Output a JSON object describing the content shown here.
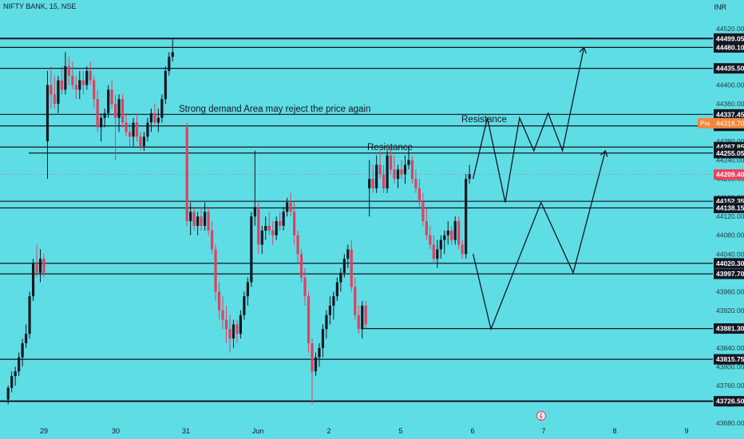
{
  "header": {
    "symbol": "NIFTY BANK, 15, NSE",
    "currency": "INR"
  },
  "colors": {
    "background": "#5fdde5",
    "bull": "#131722",
    "bear": "#e0405e",
    "line": "#131722",
    "label_bg": "#131722",
    "label_text": "#ffffff",
    "pre_bg": "#f0883a",
    "current_bg": "#f0405e"
  },
  "chart_data": {
    "type": "candlestick",
    "title": "",
    "ylim": [
      43680,
      44525
    ],
    "y_ticks": [
      "44520.00",
      "44480.00",
      "44440.00",
      "44400.00",
      "44360.00",
      "44320.00",
      "44280.00",
      "44240.00",
      "44200.00",
      "44160.00",
      "44120.00",
      "44080.00",
      "44040.00",
      "44000.00",
      "43960.00",
      "43920.00",
      "43880.00",
      "43840.00",
      "43800.00",
      "43760.00",
      "43720.00",
      "43680.00"
    ],
    "x_labels": [
      "29",
      "30",
      "31",
      "Jun",
      "2",
      "5",
      "6",
      "7",
      "8",
      "9"
    ],
    "horizontal_levels": [
      {
        "label": "44499.05",
        "value": 44499.05
      },
      {
        "label": "44480.10",
        "value": 44480.1
      },
      {
        "label": "44435.50",
        "value": 44435.5
      },
      {
        "label": "44337.45",
        "value": 44337.45
      },
      {
        "label": "44312.95",
        "value": 44312.95
      },
      {
        "label": "44267.85",
        "value": 44267.85
      },
      {
        "label": "44255.05",
        "value": 44255.05
      },
      {
        "label": "44152.35",
        "value": 44152.35
      },
      {
        "label": "44138.15",
        "value": 44138.15
      },
      {
        "label": "44020.30",
        "value": 44020.3
      },
      {
        "label": "43997.70",
        "value": 43997.7
      },
      {
        "label": "43881.30",
        "value": 43881.3
      },
      {
        "label": "43815.75",
        "value": 43815.75
      },
      {
        "label": "43726.50",
        "value": 43726.5
      }
    ],
    "pre_market": {
      "tag": "Pre",
      "label": "44318.70",
      "value": 44318.7
    },
    "current_price": {
      "label": "44209.40",
      "value": 44209.4
    },
    "annotations": [
      {
        "text": "Strong demand Area may reject the price again",
        "x": 31.0,
        "y": 44337
      },
      {
        "text": "Resistance",
        "x": 5.85,
        "y": 44317
      },
      {
        "text": "Resistance",
        "x": 4.6,
        "y": 44262
      }
    ],
    "candles": [
      {
        "x": 28.5,
        "o": 43730,
        "h": 43760,
        "l": 43720,
        "c": 43755
      },
      {
        "x": 28.55,
        "o": 43755,
        "h": 43790,
        "l": 43745,
        "c": 43780
      },
      {
        "x": 28.6,
        "o": 43780,
        "h": 43800,
        "l": 43760,
        "c": 43790
      },
      {
        "x": 28.65,
        "o": 43790,
        "h": 43830,
        "l": 43780,
        "c": 43820
      },
      {
        "x": 28.7,
        "o": 43820,
        "h": 43860,
        "l": 43800,
        "c": 43850
      },
      {
        "x": 28.75,
        "o": 43850,
        "h": 43890,
        "l": 43840,
        "c": 43870
      },
      {
        "x": 28.8,
        "o": 43870,
        "h": 43960,
        "l": 43860,
        "c": 43950
      },
      {
        "x": 28.85,
        "o": 43950,
        "h": 44030,
        "l": 43940,
        "c": 44020
      },
      {
        "x": 28.9,
        "o": 44020,
        "h": 44060,
        "l": 43990,
        "c": 44000
      },
      {
        "x": 28.95,
        "o": 44000,
        "h": 44050,
        "l": 43980,
        "c": 44030
      },
      {
        "x": 29.0,
        "o": 44030,
        "h": 44040,
        "l": 43990,
        "c": 44000
      },
      {
        "x": 29.05,
        "o": 44280,
        "h": 44430,
        "l": 44200,
        "c": 44400
      },
      {
        "x": 29.1,
        "o": 44400,
        "h": 44440,
        "l": 44350,
        "c": 44380
      },
      {
        "x": 29.15,
        "o": 44380,
        "h": 44420,
        "l": 44350,
        "c": 44360
      },
      {
        "x": 29.2,
        "o": 44360,
        "h": 44420,
        "l": 44340,
        "c": 44410
      },
      {
        "x": 29.25,
        "o": 44410,
        "h": 44440,
        "l": 44380,
        "c": 44390
      },
      {
        "x": 29.3,
        "o": 44390,
        "h": 44470,
        "l": 44380,
        "c": 44440
      },
      {
        "x": 29.35,
        "o": 44440,
        "h": 44460,
        "l": 44400,
        "c": 44420
      },
      {
        "x": 29.4,
        "o": 44420,
        "h": 44450,
        "l": 44390,
        "c": 44400
      },
      {
        "x": 29.45,
        "o": 44400,
        "h": 44420,
        "l": 44370,
        "c": 44390
      },
      {
        "x": 29.5,
        "o": 44390,
        "h": 44430,
        "l": 44370,
        "c": 44410
      },
      {
        "x": 29.55,
        "o": 44410,
        "h": 44430,
        "l": 44380,
        "c": 44400
      },
      {
        "x": 29.6,
        "o": 44400,
        "h": 44440,
        "l": 44390,
        "c": 44430
      },
      {
        "x": 29.65,
        "o": 44430,
        "h": 44450,
        "l": 44400,
        "c": 44410
      },
      {
        "x": 29.7,
        "o": 44410,
        "h": 44420,
        "l": 44350,
        "c": 44370
      },
      {
        "x": 29.75,
        "o": 44370,
        "h": 44390,
        "l": 44300,
        "c": 44310
      },
      {
        "x": 29.8,
        "o": 44310,
        "h": 44340,
        "l": 44280,
        "c": 44330
      },
      {
        "x": 29.85,
        "o": 44330,
        "h": 44350,
        "l": 44310,
        "c": 44340
      },
      {
        "x": 29.9,
        "o": 44340,
        "h": 44400,
        "l": 44330,
        "c": 44390
      },
      {
        "x": 29.95,
        "o": 44390,
        "h": 44410,
        "l": 44350,
        "c": 44360
      },
      {
        "x": 30.0,
        "o": 44360,
        "h": 44380,
        "l": 44240,
        "c": 44330
      },
      {
        "x": 30.05,
        "o": 44330,
        "h": 44380,
        "l": 44300,
        "c": 44370
      },
      {
        "x": 30.1,
        "o": 44370,
        "h": 44380,
        "l": 44310,
        "c": 44320
      },
      {
        "x": 30.15,
        "o": 44320,
        "h": 44340,
        "l": 44290,
        "c": 44300
      },
      {
        "x": 30.2,
        "o": 44300,
        "h": 44320,
        "l": 44270,
        "c": 44290
      },
      {
        "x": 30.25,
        "o": 44290,
        "h": 44330,
        "l": 44270,
        "c": 44320
      },
      {
        "x": 30.3,
        "o": 44320,
        "h": 44340,
        "l": 44280,
        "c": 44290
      },
      {
        "x": 30.35,
        "o": 44290,
        "h": 44300,
        "l": 44260,
        "c": 44270
      },
      {
        "x": 30.4,
        "o": 44270,
        "h": 44300,
        "l": 44260,
        "c": 44290
      },
      {
        "x": 30.45,
        "o": 44290,
        "h": 44330,
        "l": 44280,
        "c": 44320
      },
      {
        "x": 30.5,
        "o": 44320,
        "h": 44350,
        "l": 44300,
        "c": 44340
      },
      {
        "x": 30.55,
        "o": 44340,
        "h": 44360,
        "l": 44310,
        "c": 44320
      },
      {
        "x": 30.6,
        "o": 44320,
        "h": 44350,
        "l": 44300,
        "c": 44330
      },
      {
        "x": 30.65,
        "o": 44330,
        "h": 44380,
        "l": 44320,
        "c": 44370
      },
      {
        "x": 30.7,
        "o": 44370,
        "h": 44440,
        "l": 44360,
        "c": 44430
      },
      {
        "x": 30.75,
        "o": 44430,
        "h": 44470,
        "l": 44420,
        "c": 44460
      },
      {
        "x": 30.8,
        "o": 44460,
        "h": 44500,
        "l": 44450,
        "c": 44470
      },
      {
        "x": 31.0,
        "o": 44310,
        "h": 44320,
        "l": 44100,
        "c": 44110
      },
      {
        "x": 31.05,
        "o": 44110,
        "h": 44150,
        "l": 44080,
        "c": 44130
      },
      {
        "x": 31.1,
        "o": 44130,
        "h": 44140,
        "l": 44090,
        "c": 44100
      },
      {
        "x": 31.15,
        "o": 44100,
        "h": 44130,
        "l": 44080,
        "c": 44120
      },
      {
        "x": 31.2,
        "o": 44120,
        "h": 44140,
        "l": 44090,
        "c": 44100
      },
      {
        "x": 31.25,
        "o": 44100,
        "h": 44150,
        "l": 44090,
        "c": 44130
      },
      {
        "x": 31.3,
        "o": 44130,
        "h": 44140,
        "l": 44080,
        "c": 44090
      },
      {
        "x": 31.35,
        "o": 44090,
        "h": 44110,
        "l": 44040,
        "c": 44050
      },
      {
        "x": 31.4,
        "o": 44050,
        "h": 44060,
        "l": 43940,
        "c": 43960
      },
      {
        "x": 31.45,
        "o": 43960,
        "h": 43980,
        "l": 43900,
        "c": 43920
      },
      {
        "x": 31.5,
        "o": 43920,
        "h": 43950,
        "l": 43880,
        "c": 43900
      },
      {
        "x": 31.55,
        "o": 43900,
        "h": 43930,
        "l": 43850,
        "c": 43880
      },
      {
        "x": 31.6,
        "o": 43880,
        "h": 43910,
        "l": 43830,
        "c": 43860
      },
      {
        "x": 31.65,
        "o": 43860,
        "h": 43900,
        "l": 43840,
        "c": 43890
      },
      {
        "x": 31.7,
        "o": 43890,
        "h": 43900,
        "l": 43850,
        "c": 43870
      },
      {
        "x": 31.75,
        "o": 43870,
        "h": 43920,
        "l": 43860,
        "c": 43910
      },
      {
        "x": 31.8,
        "o": 43910,
        "h": 43960,
        "l": 43900,
        "c": 43950
      },
      {
        "x": 31.85,
        "o": 43950,
        "h": 43990,
        "l": 43930,
        "c": 43980
      },
      {
        "x": 31.9,
        "o": 43980,
        "h": 44130,
        "l": 43970,
        "c": 44120
      },
      {
        "x": 31.95,
        "o": 44120,
        "h": 44260,
        "l": 44100,
        "c": 44140
      },
      {
        "x": 32.0,
        "o": 44140,
        "h": 44150,
        "l": 44040,
        "c": 44060
      },
      {
        "x": 32.05,
        "o": 44060,
        "h": 44100,
        "l": 44040,
        "c": 44090
      },
      {
        "x": 32.1,
        "o": 44090,
        "h": 44120,
        "l": 44070,
        "c": 44100
      },
      {
        "x": 32.15,
        "o": 44100,
        "h": 44130,
        "l": 44080,
        "c": 44090
      },
      {
        "x": 32.2,
        "o": 44090,
        "h": 44110,
        "l": 44060,
        "c": 44080
      },
      {
        "x": 32.25,
        "o": 44080,
        "h": 44120,
        "l": 44070,
        "c": 44110
      },
      {
        "x": 32.3,
        "o": 44110,
        "h": 44130,
        "l": 44090,
        "c": 44100
      },
      {
        "x": 32.35,
        "o": 44100,
        "h": 44140,
        "l": 44090,
        "c": 44130
      },
      {
        "x": 32.4,
        "o": 44130,
        "h": 44160,
        "l": 44120,
        "c": 44150
      },
      {
        "x": 32.45,
        "o": 44150,
        "h": 44170,
        "l": 44120,
        "c": 44130
      },
      {
        "x": 32.5,
        "o": 44130,
        "h": 44150,
        "l": 44060,
        "c": 44080
      },
      {
        "x": 32.55,
        "o": 44080,
        "h": 44090,
        "l": 44020,
        "c": 44040
      },
      {
        "x": 32.6,
        "o": 44040,
        "h": 44050,
        "l": 43980,
        "c": 43990
      },
      {
        "x": 32.65,
        "o": 43990,
        "h": 44010,
        "l": 43930,
        "c": 43950
      },
      {
        "x": 32.7,
        "o": 43950,
        "h": 43960,
        "l": 43830,
        "c": 43850
      },
      {
        "x": 32.75,
        "o": 43850,
        "h": 43860,
        "l": 43720,
        "c": 43790
      },
      {
        "x": 32.8,
        "o": 43790,
        "h": 43830,
        "l": 43780,
        "c": 43820
      },
      {
        "x": 32.85,
        "o": 43820,
        "h": 43850,
        "l": 43800,
        "c": 43840
      },
      {
        "x": 32.9,
        "o": 43840,
        "h": 43890,
        "l": 43820,
        "c": 43880
      },
      {
        "x": 32.95,
        "o": 43880,
        "h": 43920,
        "l": 43860,
        "c": 43910
      },
      {
        "x": 33.0,
        "o": 43910,
        "h": 43950,
        "l": 43890,
        "c": 43930
      },
      {
        "x": 33.05,
        "o": 43930,
        "h": 43960,
        "l": 43900,
        "c": 43950
      },
      {
        "x": 33.1,
        "o": 43950,
        "h": 43990,
        "l": 43940,
        "c": 43980
      },
      {
        "x": 33.15,
        "o": 43980,
        "h": 44010,
        "l": 43960,
        "c": 44000
      },
      {
        "x": 33.2,
        "o": 44000,
        "h": 44040,
        "l": 43990,
        "c": 44030
      },
      {
        "x": 33.25,
        "o": 44030,
        "h": 44060,
        "l": 44010,
        "c": 44050
      },
      {
        "x": 33.3,
        "o": 44050,
        "h": 44070,
        "l": 43960,
        "c": 43970
      },
      {
        "x": 33.35,
        "o": 43970,
        "h": 43990,
        "l": 43900,
        "c": 43910
      },
      {
        "x": 33.4,
        "o": 43910,
        "h": 43930,
        "l": 43870,
        "c": 43880
      },
      {
        "x": 33.45,
        "o": 43880,
        "h": 43940,
        "l": 43860,
        "c": 43930
      },
      {
        "x": 33.5,
        "o": 43930,
        "h": 43940,
        "l": 43880,
        "c": 43890
      },
      {
        "x": 33.55,
        "o": 44180,
        "h": 44240,
        "l": 44120,
        "c": 44200
      },
      {
        "x": 33.6,
        "o": 44200,
        "h": 44230,
        "l": 44170,
        "c": 44180
      },
      {
        "x": 33.65,
        "o": 44180,
        "h": 44250,
        "l": 44170,
        "c": 44230
      },
      {
        "x": 33.7,
        "o": 44230,
        "h": 44260,
        "l": 44200,
        "c": 44210
      },
      {
        "x": 33.75,
        "o": 44210,
        "h": 44230,
        "l": 44170,
        "c": 44180
      },
      {
        "x": 33.8,
        "o": 44180,
        "h": 44260,
        "l": 44170,
        "c": 44250
      },
      {
        "x": 33.85,
        "o": 44250,
        "h": 44270,
        "l": 44210,
        "c": 44220
      },
      {
        "x": 33.9,
        "o": 44220,
        "h": 44250,
        "l": 44190,
        "c": 44200
      },
      {
        "x": 33.95,
        "o": 44200,
        "h": 44230,
        "l": 44180,
        "c": 44220
      },
      {
        "x": 34.0,
        "o": 44220,
        "h": 44240,
        "l": 44200,
        "c": 44210
      },
      {
        "x": 34.05,
        "o": 44210,
        "h": 44250,
        "l": 44190,
        "c": 44230
      },
      {
        "x": 34.1,
        "o": 44230,
        "h": 44270,
        "l": 44220,
        "c": 44240
      },
      {
        "x": 34.15,
        "o": 44240,
        "h": 44250,
        "l": 44190,
        "c": 44200
      },
      {
        "x": 34.2,
        "o": 44200,
        "h": 44220,
        "l": 44170,
        "c": 44180
      },
      {
        "x": 34.25,
        "o": 44180,
        "h": 44200,
        "l": 44140,
        "c": 44150
      },
      {
        "x": 34.3,
        "o": 44150,
        "h": 44170,
        "l": 44100,
        "c": 44110
      },
      {
        "x": 34.35,
        "o": 44110,
        "h": 44140,
        "l": 44070,
        "c": 44080
      },
      {
        "x": 34.4,
        "o": 44080,
        "h": 44100,
        "l": 44050,
        "c": 44060
      },
      {
        "x": 34.45,
        "o": 44060,
        "h": 44080,
        "l": 44020,
        "c": 44030
      },
      {
        "x": 34.5,
        "o": 44030,
        "h": 44070,
        "l": 44010,
        "c": 44050
      },
      {
        "x": 34.55,
        "o": 44050,
        "h": 44080,
        "l": 44030,
        "c": 44070
      },
      {
        "x": 34.6,
        "o": 44070,
        "h": 44090,
        "l": 44040,
        "c": 44080
      },
      {
        "x": 34.65,
        "o": 44080,
        "h": 44110,
        "l": 44060,
        "c": 44090
      },
      {
        "x": 34.7,
        "o": 44090,
        "h": 44100,
        "l": 44060,
        "c": 44070
      },
      {
        "x": 34.75,
        "o": 44070,
        "h": 44120,
        "l": 44060,
        "c": 44110
      },
      {
        "x": 34.8,
        "o": 44110,
        "h": 44120,
        "l": 44050,
        "c": 44060
      },
      {
        "x": 34.85,
        "o": 44060,
        "h": 44070,
        "l": 44030,
        "c": 44040
      },
      {
        "x": 34.9,
        "o": 44040,
        "h": 44210,
        "l": 44030,
        "c": 44200
      },
      {
        "x": 34.95,
        "o": 44200,
        "h": 44230,
        "l": 44190,
        "c": 44210
      }
    ],
    "projections": [
      {
        "points": [
          [
            35.0,
            44200
          ],
          [
            35.2,
            44330
          ],
          [
            35.45,
            44150
          ],
          [
            35.65,
            44330
          ],
          [
            35.85,
            44260
          ],
          [
            36.05,
            44340
          ],
          [
            36.25,
            44260
          ],
          [
            36.55,
            44480
          ]
        ]
      },
      {
        "points": [
          [
            35.0,
            44040
          ],
          [
            35.25,
            43880
          ],
          [
            35.95,
            44150
          ],
          [
            36.4,
            44000
          ],
          [
            36.85,
            44260
          ]
        ]
      }
    ]
  }
}
